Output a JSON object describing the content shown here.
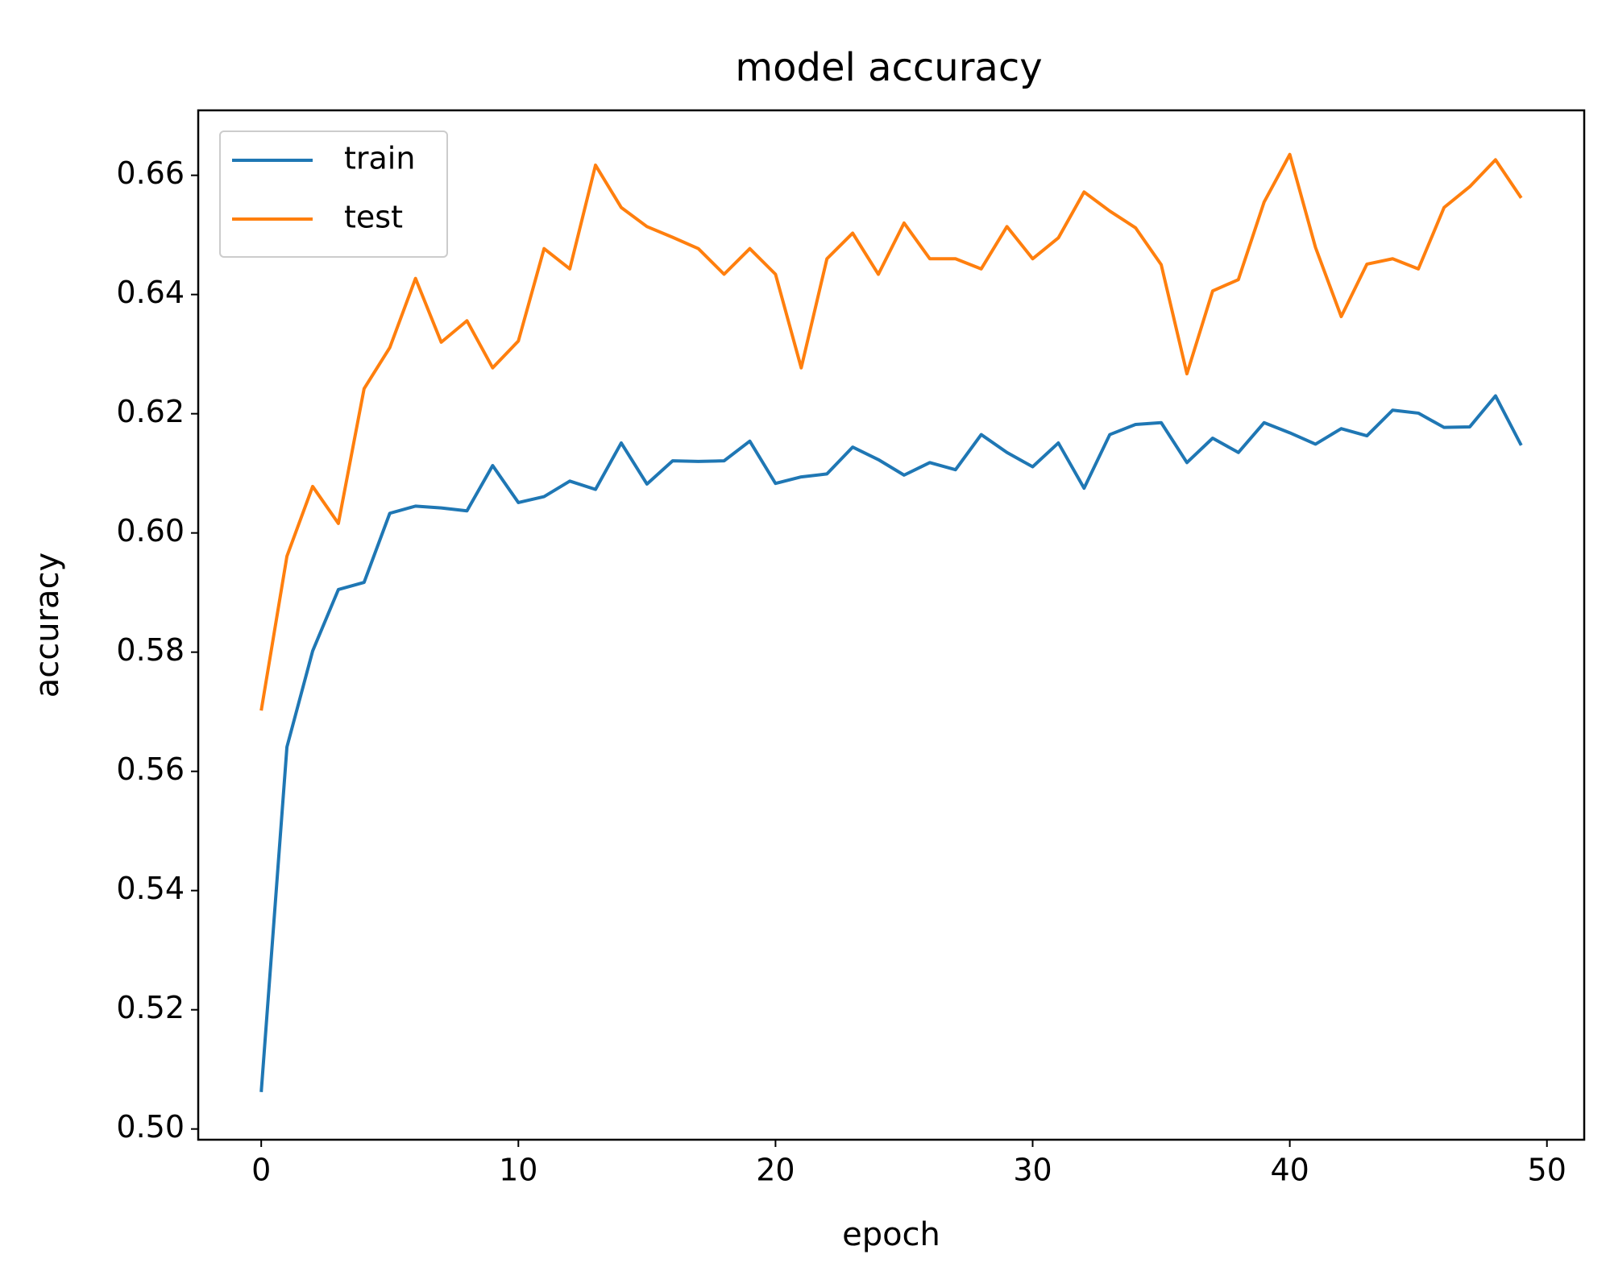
{
  "chart_data": {
    "type": "line",
    "title": "model accuracy",
    "x_label": "epoch",
    "y_label": "accuracy",
    "x": [
      0,
      1,
      2,
      3,
      4,
      5,
      6,
      7,
      8,
      9,
      10,
      11,
      12,
      13,
      14,
      15,
      16,
      17,
      18,
      19,
      20,
      21,
      22,
      23,
      24,
      25,
      26,
      27,
      28,
      29,
      30,
      31,
      32,
      33,
      34,
      35,
      36,
      37,
      38,
      39,
      40,
      41,
      42,
      43,
      44,
      45,
      46,
      47,
      48,
      49
    ],
    "series": [
      {
        "name": "train",
        "color": "#1f77b4",
        "values": [
          0.5062,
          0.5641,
          0.5802,
          0.5905,
          0.5917,
          0.6033,
          0.6045,
          0.6042,
          0.6037,
          0.6113,
          0.6051,
          0.6061,
          0.6087,
          0.6073,
          0.6151,
          0.6082,
          0.6121,
          0.612,
          0.6121,
          0.6154,
          0.6083,
          0.6094,
          0.6099,
          0.6144,
          0.6123,
          0.6097,
          0.6118,
          0.6106,
          0.6165,
          0.6135,
          0.6111,
          0.6151,
          0.6075,
          0.6165,
          0.6182,
          0.6185,
          0.6118,
          0.6159,
          0.6135,
          0.6185,
          0.6168,
          0.6149,
          0.6175,
          0.6163,
          0.6206,
          0.6201,
          0.6177,
          0.6178,
          0.623,
          0.6147
        ]
      },
      {
        "name": "test",
        "color": "#ff7f0e",
        "values": [
          0.5702,
          0.5961,
          0.6078,
          0.6016,
          0.6242,
          0.6311,
          0.6427,
          0.632,
          0.6356,
          0.6277,
          0.6322,
          0.6477,
          0.6443,
          0.6617,
          0.6546,
          0.6514,
          0.6496,
          0.6477,
          0.6434,
          0.6477,
          0.6434,
          0.6277,
          0.646,
          0.6503,
          0.6434,
          0.652,
          0.646,
          0.646,
          0.6443,
          0.6514,
          0.646,
          0.6495,
          0.6572,
          0.654,
          0.6512,
          0.645,
          0.6267,
          0.6406,
          0.6425,
          0.6555,
          0.6635,
          0.6479,
          0.6363,
          0.6451,
          0.646,
          0.6443,
          0.6546,
          0.6581,
          0.6626,
          0.6562
        ]
      }
    ],
    "xlim": [
      -2.45,
      51.45
    ],
    "xticks": [
      0,
      10,
      20,
      30,
      40,
      50
    ],
    "ylim": [
      0.4982,
      0.6709
    ],
    "yticks": [
      {
        "value": 0.5,
        "label": "0.50"
      },
      0.52,
      0.54,
      0.56,
      0.58,
      {
        "value": 0.6,
        "label": "0.60"
      },
      0.62,
      0.64,
      0.66
    ],
    "grid": false,
    "legend": "upper left"
  }
}
